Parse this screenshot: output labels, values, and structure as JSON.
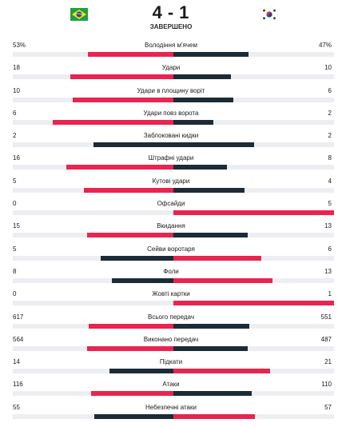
{
  "match": {
    "home_flag": "brazil-flag",
    "away_flag": "south-korea-flag",
    "home_score": "4",
    "separator": "-",
    "away_score": "1",
    "status": "ЗАВЕРШЕНО"
  },
  "colors": {
    "leader": "#e8244f",
    "trailer": "#1d2b36",
    "track": "#eceef1"
  },
  "stats": [
    {
      "name": "Володіння м'ячем",
      "home": "53%",
      "away": "47%",
      "home_share": 0.53,
      "away_share": 0.47
    },
    {
      "name": "Удари",
      "home": "18",
      "away": "10",
      "home_share": 0.64,
      "away_share": 0.36
    },
    {
      "name": "Удари в площину воріт",
      "home": "10",
      "away": "6",
      "home_share": 0.625,
      "away_share": 0.375
    },
    {
      "name": "Удари повз ворота",
      "home": "6",
      "away": "2",
      "home_share": 0.75,
      "away_share": 0.25
    },
    {
      "name": "Заблоковані кидки",
      "home": "2",
      "away": "2",
      "home_share": 0.5,
      "away_share": 0.5
    },
    {
      "name": "Штрафні удари",
      "home": "16",
      "away": "8",
      "home_share": 0.667,
      "away_share": 0.333
    },
    {
      "name": "Кутові удари",
      "home": "5",
      "away": "4",
      "home_share": 0.556,
      "away_share": 0.444
    },
    {
      "name": "Офсайди",
      "home": "0",
      "away": "5",
      "home_share": 0,
      "away_share": 1
    },
    {
      "name": "Вкидання",
      "home": "15",
      "away": "13",
      "home_share": 0.536,
      "away_share": 0.464
    },
    {
      "name": "Сейви воротаря",
      "home": "5",
      "away": "6",
      "home_share": 0.455,
      "away_share": 0.545
    },
    {
      "name": "Фоли",
      "home": "8",
      "away": "13",
      "home_share": 0.381,
      "away_share": 0.619
    },
    {
      "name": "Жовті картки",
      "home": "0",
      "away": "1",
      "home_share": 0,
      "away_share": 1
    },
    {
      "name": "Всього передач",
      "home": "617",
      "away": "551",
      "home_share": 0.528,
      "away_share": 0.472
    },
    {
      "name": "Виконано передач",
      "home": "564",
      "away": "487",
      "home_share": 0.537,
      "away_share": 0.463
    },
    {
      "name": "Підкати",
      "home": "14",
      "away": "21",
      "home_share": 0.4,
      "away_share": 0.6
    },
    {
      "name": "Атаки",
      "home": "116",
      "away": "110",
      "home_share": 0.513,
      "away_share": 0.487
    },
    {
      "name": "Небезпечні атаки",
      "home": "55",
      "away": "57",
      "home_share": 0.491,
      "away_share": 0.509
    }
  ]
}
